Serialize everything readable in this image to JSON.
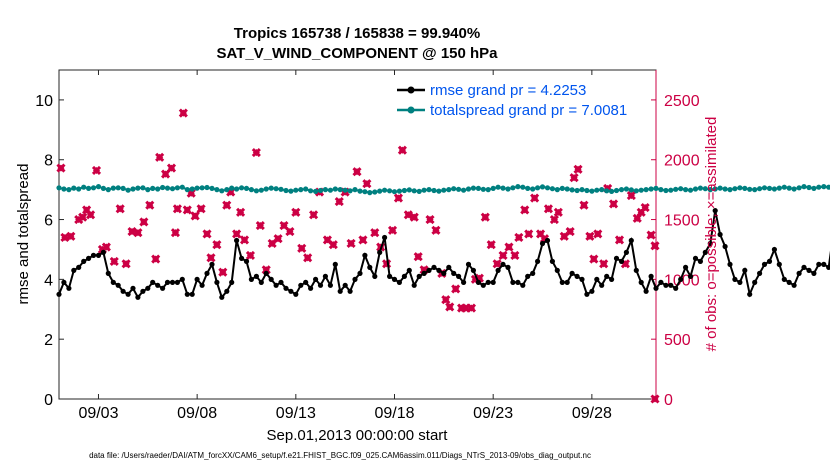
{
  "chart_data": {
    "type": "line",
    "title_line1": "Tropics 165738 / 165838 = 99.940%",
    "title_line2": "SAT_V_WIND_COMPONENT @ 150 hPa",
    "xlabel": "Sep.01,2013 00:00:00 start",
    "ylabel_left": "rmse and totalspread",
    "ylabel_right": "# of obs: o=possible; ×=assimilated",
    "footer": "data file: /Users/raeder/DAI/ATM_forcXX/CAM6_setup/f.e21.FHIST_BGC.f09_025.CAM6assim.011/Diags_NTrS_2013-09/obs_diag_output.nc",
    "x_range_days": [
      1.0,
      31.25
    ],
    "x_ticks": [
      {
        "day": 3,
        "label": "09/03"
      },
      {
        "day": 8,
        "label": "09/08"
      },
      {
        "day": 13,
        "label": "09/13"
      },
      {
        "day": 18,
        "label": "09/18"
      },
      {
        "day": 23,
        "label": "09/23"
      },
      {
        "day": 28,
        "label": "09/28"
      }
    ],
    "y_left": {
      "range": [
        0,
        11
      ],
      "ticks": [
        0,
        2,
        4,
        6,
        8,
        10
      ]
    },
    "y_right": {
      "range": [
        0,
        2750
      ],
      "ticks": [
        0,
        500,
        1000,
        1500,
        2000,
        2500
      ]
    },
    "colors": {
      "rmse": "#000000",
      "spread": "#008080",
      "obs": "#cc0044"
    },
    "series": [
      {
        "name": "rmse",
        "legend": "rmse grand pr = 4.2253",
        "x_start_day": 1.0,
        "x_step_days": 0.25,
        "values": [
          3.5,
          3.9,
          3.7,
          4.3,
          4.4,
          4.6,
          4.7,
          4.8,
          4.8,
          4.9,
          4.2,
          3.9,
          3.8,
          3.6,
          3.5,
          3.7,
          3.4,
          3.6,
          3.7,
          3.9,
          3.8,
          3.7,
          3.9,
          3.9,
          3.9,
          4.0,
          3.5,
          3.5,
          4.0,
          3.8,
          4.2,
          4.5,
          3.9,
          3.4,
          3.6,
          3.9,
          5.3,
          4.7,
          4.6,
          4.0,
          4.1,
          3.9,
          4.2,
          4.0,
          3.8,
          3.9,
          3.7,
          3.6,
          3.5,
          3.8,
          3.9,
          3.7,
          4.0,
          3.8,
          4.1,
          3.8,
          4.5,
          3.6,
          3.8,
          3.6,
          4.0,
          4.2,
          4.8,
          4.4,
          4.1,
          4.9,
          5.4,
          4.1,
          4.0,
          3.9,
          4.1,
          4.3,
          3.8,
          4.1,
          4.2,
          4.3,
          4.4,
          4.3,
          4.2,
          4.4,
          4.2,
          4.1,
          3.9,
          4.5,
          4.3,
          3.9,
          3.8,
          3.9,
          3.9,
          4.3,
          4.5,
          4.4,
          3.9,
          3.9,
          3.8,
          4.1,
          4.2,
          4.6,
          5.2,
          5.3,
          4.6,
          4.3,
          3.9,
          3.9,
          4.2,
          4.1,
          4.0,
          3.5,
          3.6,
          4.0,
          3.8,
          4.1,
          4.0,
          4.7,
          4.6,
          4.9,
          5.3,
          4.3,
          3.9,
          3.6,
          4.1,
          3.7,
          3.9,
          3.8,
          3.8,
          3.7,
          4.0,
          4.4,
          4.1,
          4.7,
          4.6,
          4.9,
          5.2,
          6.3,
          5.5,
          5.1,
          4.5,
          4.0,
          3.9,
          4.3,
          3.5,
          3.9,
          4.2,
          4.5,
          4.6,
          5.0,
          4.5,
          4.0,
          3.9,
          3.8,
          4.2,
          4.4,
          4.3,
          4.2,
          4.5,
          4.5,
          4.4,
          5.6,
          5.1,
          5.0,
          4.5
        ]
      },
      {
        "name": "totalspread",
        "legend": "totalspread grand pr = 7.0081",
        "x_start_day": 1.0,
        "x_step_days": 0.25,
        "values": [
          7.06,
          7.02,
          7.0,
          7.05,
          7.02,
          7.08,
          7.04,
          7.06,
          7.1,
          7.04,
          7.0,
          7.05,
          7.06,
          7.04,
          6.98,
          7.02,
          7.05,
          7.06,
          7.0,
          7.04,
          7.02,
          7.07,
          7.05,
          7.03,
          7.06,
          7.08,
          7.0,
          7.02,
          7.05,
          7.06,
          7.07,
          7.04,
          7.0,
          6.96,
          7.0,
          7.05,
          7.02,
          7.06,
          7.04,
          7.0,
          6.96,
          6.98,
          7.02,
          7.05,
          7.03,
          7.01,
          6.97,
          6.95,
          6.98,
          7.0,
          7.02,
          6.96,
          6.94,
          6.97,
          7.0,
          6.98,
          7.02,
          7.0,
          6.98,
          6.96,
          7.0,
          6.95,
          6.93,
          6.9,
          6.92,
          6.95,
          6.98,
          6.96,
          6.93,
          6.95,
          6.97,
          6.99,
          6.96,
          6.94,
          6.98,
          7.0,
          6.97,
          6.95,
          6.98,
          7.0,
          7.03,
          7.01,
          6.98,
          7.02,
          7.05,
          7.04,
          7.01,
          7.0,
          7.04,
          7.08,
          7.05,
          7.02,
          7.06,
          7.1,
          7.08,
          7.04,
          7.02,
          7.06,
          7.09,
          7.06,
          7.03,
          7.0,
          7.04,
          7.02,
          6.99,
          6.97,
          7.0,
          6.97,
          6.95,
          6.98,
          7.0,
          6.96,
          6.94,
          6.97,
          7.0,
          7.02,
          6.99,
          6.96,
          6.98,
          7.0,
          7.02,
          7.04,
          7.0,
          6.97,
          6.98,
          7.01,
          7.03,
          7.0,
          6.98,
          7.02,
          7.05,
          7.03,
          7.0,
          7.02,
          7.05,
          7.02,
          7.0,
          7.03,
          7.06,
          7.04,
          7.01,
          7.0,
          7.03,
          7.06,
          7.04,
          7.02,
          7.05,
          7.08,
          7.05,
          7.02,
          7.06,
          7.1,
          7.07,
          7.04,
          7.08,
          7.1,
          7.08,
          7.05,
          7.08,
          7.12,
          7.1,
          7.08
        ]
      },
      {
        "name": "assimilated",
        "marker": "x",
        "axis": "right",
        "points": [
          [
            1.1,
            1930
          ],
          [
            1.3,
            1350
          ],
          [
            1.6,
            1360
          ],
          [
            2.0,
            1500
          ],
          [
            2.2,
            1520
          ],
          [
            2.4,
            1580
          ],
          [
            2.6,
            1540
          ],
          [
            2.9,
            1910
          ],
          [
            3.2,
            1250
          ],
          [
            3.4,
            1270
          ],
          [
            3.8,
            1150
          ],
          [
            4.1,
            1590
          ],
          [
            4.4,
            1130
          ],
          [
            4.7,
            1400
          ],
          [
            5.0,
            1390
          ],
          [
            5.3,
            1480
          ],
          [
            5.6,
            1620
          ],
          [
            5.9,
            1170
          ],
          [
            6.1,
            2020
          ],
          [
            6.4,
            1880
          ],
          [
            6.7,
            1930
          ],
          [
            6.9,
            1390
          ],
          [
            7.0,
            1590
          ],
          [
            7.3,
            2390
          ],
          [
            7.5,
            1580
          ],
          [
            7.7,
            1720
          ],
          [
            7.9,
            1530
          ],
          [
            8.2,
            1590
          ],
          [
            8.5,
            1380
          ],
          [
            8.7,
            1180
          ],
          [
            9.0,
            1290
          ],
          [
            9.3,
            1060
          ],
          [
            9.5,
            1620
          ],
          [
            9.7,
            1730
          ],
          [
            10.0,
            1380
          ],
          [
            10.2,
            1560
          ],
          [
            10.4,
            1330
          ],
          [
            10.7,
            1200
          ],
          [
            11.0,
            2060
          ],
          [
            11.2,
            1450
          ],
          [
            11.5,
            1080
          ],
          [
            11.8,
            1300
          ],
          [
            12.1,
            1340
          ],
          [
            12.4,
            1450
          ],
          [
            12.7,
            1400
          ],
          [
            13.0,
            1560
          ],
          [
            13.3,
            1260
          ],
          [
            13.6,
            1180
          ],
          [
            13.9,
            1540
          ],
          [
            14.2,
            1730
          ],
          [
            14.6,
            1330
          ],
          [
            14.9,
            1290
          ],
          [
            15.2,
            1650
          ],
          [
            15.5,
            1730
          ],
          [
            15.8,
            1300
          ],
          [
            16.1,
            1900
          ],
          [
            16.4,
            1330
          ],
          [
            16.6,
            1800
          ],
          [
            17.0,
            1390
          ],
          [
            17.3,
            1270
          ],
          [
            17.6,
            1130
          ],
          [
            17.9,
            1410
          ],
          [
            18.2,
            1680
          ],
          [
            18.4,
            2080
          ],
          [
            18.7,
            1540
          ],
          [
            19.0,
            1520
          ],
          [
            19.2,
            1190
          ],
          [
            19.5,
            1080
          ],
          [
            19.8,
            1500
          ],
          [
            20.1,
            1410
          ],
          [
            20.4,
            1050
          ],
          [
            20.6,
            830
          ],
          [
            20.8,
            770
          ],
          [
            21.1,
            920
          ],
          [
            21.4,
            760
          ],
          [
            21.6,
            760
          ],
          [
            21.9,
            760
          ],
          [
            22.1,
            1000
          ],
          [
            22.3,
            1010
          ],
          [
            22.6,
            1520
          ],
          [
            22.9,
            1290
          ],
          [
            23.2,
            1130
          ],
          [
            23.5,
            1200
          ],
          [
            23.8,
            1270
          ],
          [
            24.1,
            1200
          ],
          [
            24.3,
            1350
          ],
          [
            24.6,
            1580
          ],
          [
            24.8,
            1380
          ],
          [
            25.1,
            1680
          ],
          [
            25.4,
            1380
          ],
          [
            25.6,
            1340
          ],
          [
            25.8,
            1590
          ],
          [
            26.1,
            1500
          ],
          [
            26.3,
            1560
          ],
          [
            26.6,
            1360
          ],
          [
            26.9,
            1400
          ],
          [
            27.1,
            1850
          ],
          [
            27.3,
            1920
          ],
          [
            27.6,
            1620
          ],
          [
            27.9,
            1360
          ],
          [
            28.1,
            1170
          ],
          [
            28.3,
            1380
          ],
          [
            28.6,
            1130
          ],
          [
            28.8,
            1760
          ],
          [
            29.1,
            1630
          ],
          [
            29.4,
            1330
          ],
          [
            29.7,
            1130
          ],
          [
            30.0,
            1700
          ],
          [
            30.3,
            1510
          ],
          [
            30.5,
            1560
          ],
          [
            30.7,
            1600
          ],
          [
            31.0,
            1370
          ],
          [
            31.2,
            1280
          ],
          [
            31.2,
            0
          ]
        ]
      }
    ]
  }
}
